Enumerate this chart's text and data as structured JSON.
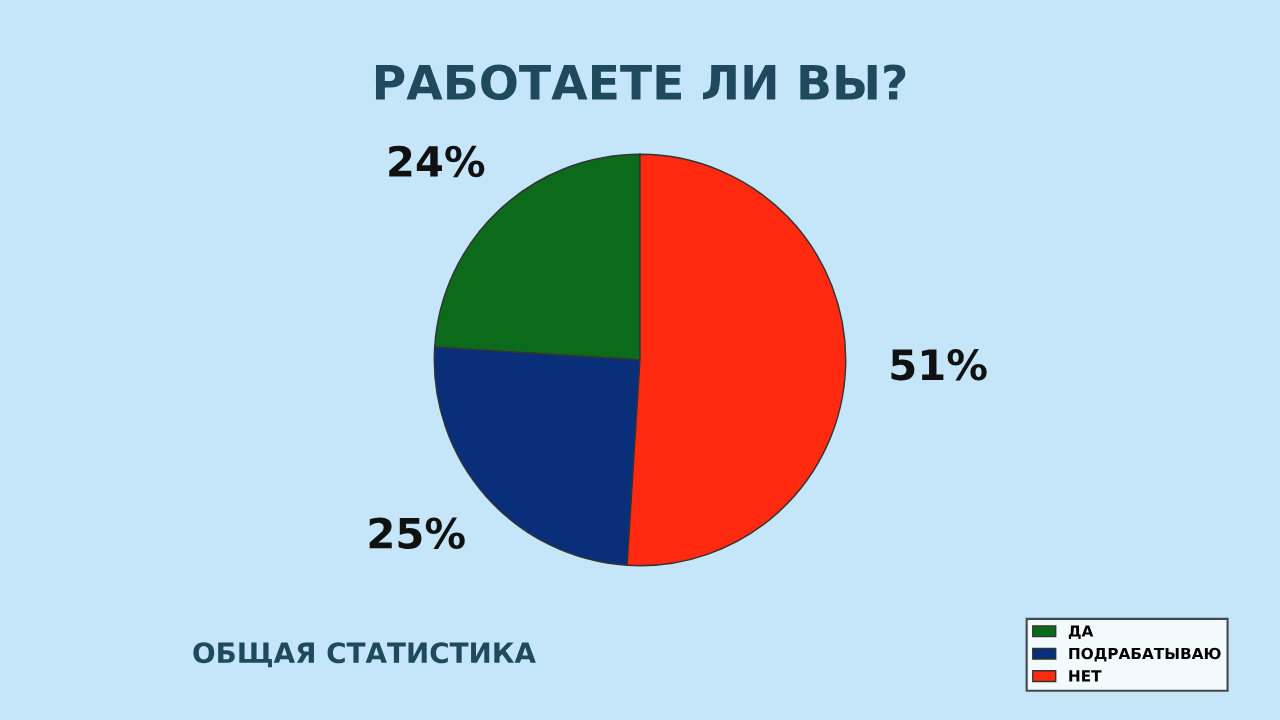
{
  "chart_data": {
    "type": "pie",
    "title": "РАБОТАЕТЕ ЛИ ВЫ?",
    "categories": [
      "ДА",
      "ПОДРАБАТЫВАЮ",
      "НЕТ"
    ],
    "values": [
      24,
      25,
      51
    ],
    "value_labels": [
      "24%",
      "25%",
      "51%"
    ],
    "colors": [
      "#0b6b1a",
      "#0a2f7a",
      "#ff2a10"
    ],
    "legend": "bottom right",
    "annotations": [
      "ОБЩАЯ СТАТИСТИКА"
    ]
  }
}
